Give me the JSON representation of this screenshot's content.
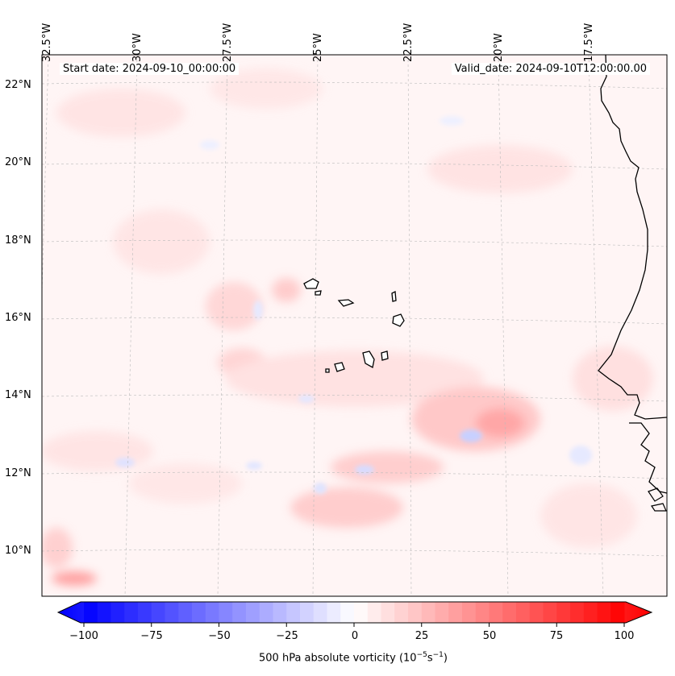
{
  "header": {
    "start_date": "Start date: 2024-09-10_00:00:00",
    "valid_date": "Valid_date: 2024-09-10T12:00:00.00"
  },
  "lon_labels": [
    "32.5°W",
    "30°W",
    "27.5°W",
    "25°W",
    "22.5°W",
    "20°W",
    "17.5°W"
  ],
  "lat_labels": [
    "22°N",
    "20°N",
    "18°N",
    "16°N",
    "14°N",
    "12°N",
    "10°N"
  ],
  "colorbar": {
    "ticks": [
      "−100",
      "−75",
      "−50",
      "−25",
      "0",
      "25",
      "50",
      "75",
      "100"
    ],
    "label": "500 hPa absolute vorticity (10",
    "label_exp1": "−5",
    "label_mid": "s",
    "label_exp2": "−1",
    "label_end": ")",
    "min": -100,
    "max": 100,
    "colors": {
      "negative": "#0000ff",
      "zero": "#ffffff",
      "positive": "#ff0000"
    }
  },
  "map_colors": {
    "coastline": "#000000",
    "gridline": "#bbbbbb",
    "background": "#fff7f7"
  }
}
